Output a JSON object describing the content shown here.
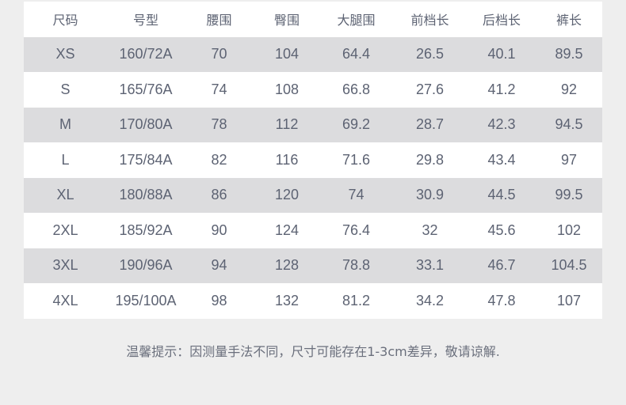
{
  "table": {
    "headers": [
      "尺码",
      "号型",
      "腰围",
      "臀围",
      "大腿围",
      "前档长",
      "后档长",
      "裤长"
    ],
    "rows": [
      [
        "XS",
        "160/72A",
        "70",
        "104",
        "64.4",
        "26.5",
        "40.1",
        "89.5"
      ],
      [
        "S",
        "165/76A",
        "74",
        "108",
        "66.8",
        "27.6",
        "41.2",
        "92"
      ],
      [
        "M",
        "170/80A",
        "78",
        "112",
        "69.2",
        "28.7",
        "42.3",
        "94.5"
      ],
      [
        "L",
        "175/84A",
        "82",
        "116",
        "71.6",
        "29.8",
        "43.4",
        "97"
      ],
      [
        "XL",
        "180/88A",
        "86",
        "120",
        "74",
        "30.9",
        "44.5",
        "99.5"
      ],
      [
        "2XL",
        "185/92A",
        "90",
        "124",
        "76.4",
        "32",
        "45.6",
        "102"
      ],
      [
        "3XL",
        "190/96A",
        "94",
        "128",
        "78.8",
        "33.1",
        "46.7",
        "104.5"
      ],
      [
        "4XL",
        "195/100A",
        "98",
        "132",
        "81.2",
        "34.2",
        "47.8",
        "107"
      ]
    ]
  },
  "note": "温馨提示：因测量手法不同，尺寸可能存在1-3cm差异，敬请谅解.",
  "colors": {
    "text": "#5d6373",
    "row_alt": "#dcdcde",
    "background": "#eeeeee"
  }
}
